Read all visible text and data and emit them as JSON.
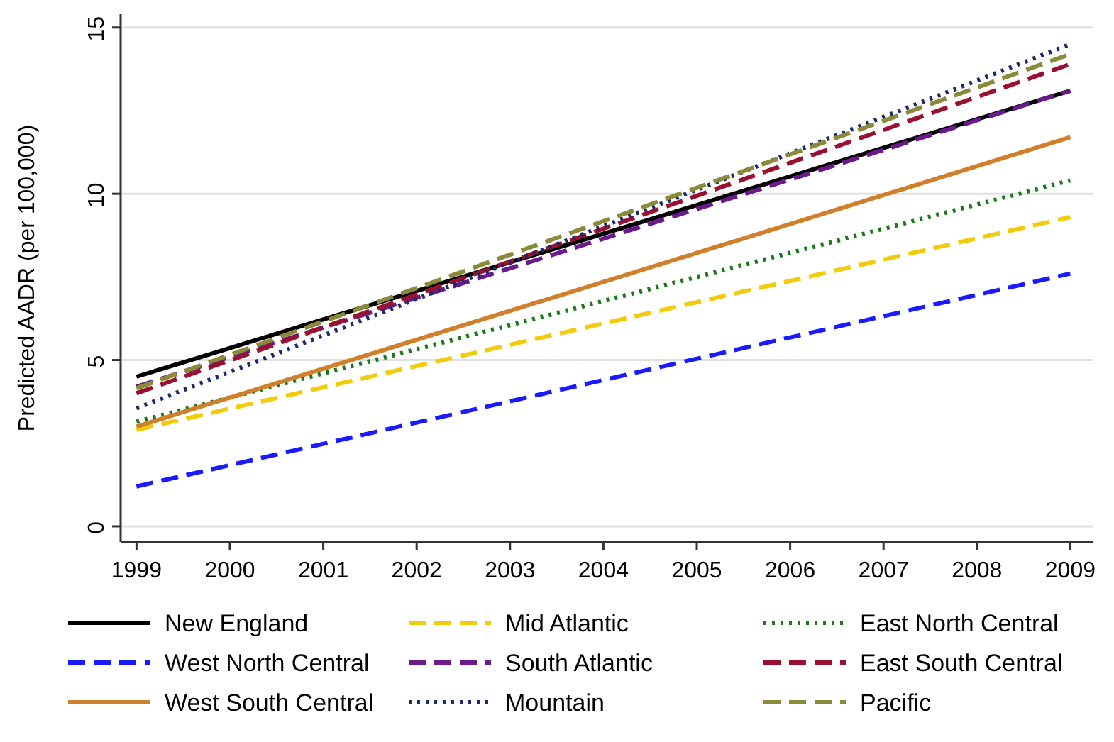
{
  "chart_data": {
    "type": "line",
    "ylabel": "Predicted AADR (per 100,000)",
    "x": [
      1999,
      2009
    ],
    "xlim": [
      1998.83,
      2009.24
    ],
    "xticks": [
      1999,
      2000,
      2001,
      2002,
      2003,
      2004,
      2005,
      2006,
      2007,
      2008,
      2009
    ],
    "ylim": [
      -0.47,
      15.4
    ],
    "yticks": [
      0,
      5,
      10,
      15
    ],
    "grid": "y",
    "legend": "bottom",
    "series": [
      {
        "name": "New England",
        "color": "#000000",
        "line_style": "solid",
        "values": [
          4.5,
          13.1
        ]
      },
      {
        "name": "Mid Atlantic",
        "color": "#f2cc0c",
        "line_style": "dashed",
        "values": [
          2.9,
          9.3
        ]
      },
      {
        "name": "East North Central",
        "color": "#1a7a1a",
        "line_style": "dotted",
        "values": [
          3.15,
          10.4
        ]
      },
      {
        "name": "West North Central",
        "color": "#1a1aff",
        "line_style": "dashed",
        "values": [
          1.2,
          7.6
        ]
      },
      {
        "name": "South Atlantic",
        "color": "#6a1a8a",
        "line_style": "dashed",
        "values": [
          4.2,
          13.1
        ]
      },
      {
        "name": "East South Central",
        "color": "#9a1030",
        "line_style": "dashed",
        "values": [
          4.0,
          13.9
        ]
      },
      {
        "name": "West South Central",
        "color": "#d0802a",
        "line_style": "solid",
        "values": [
          3.0,
          11.7
        ]
      },
      {
        "name": "Mountain",
        "color": "#1a2a6a",
        "line_style": "dotted",
        "values": [
          3.55,
          14.5
        ]
      },
      {
        "name": "Pacific",
        "color": "#8a8a3a",
        "line_style": "dashed",
        "values": [
          4.15,
          14.2
        ]
      }
    ]
  }
}
